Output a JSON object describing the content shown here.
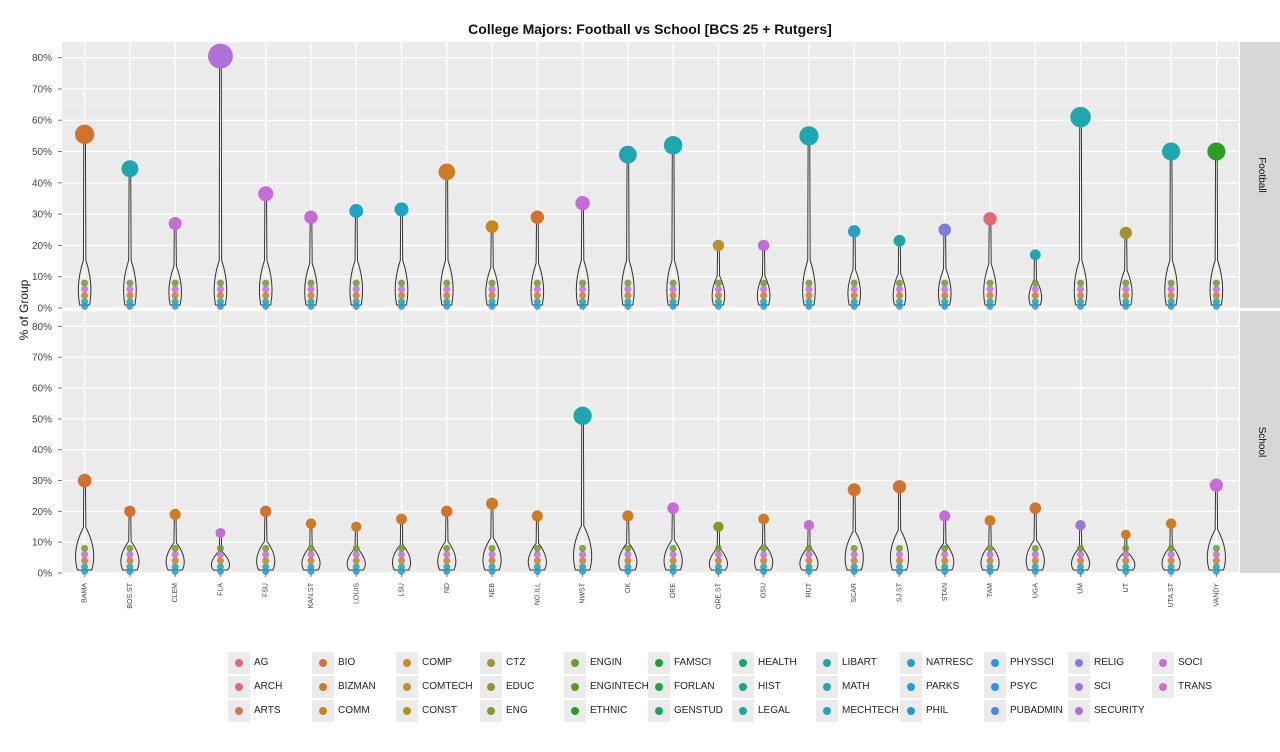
{
  "chart_data": {
    "type": "violin-scatter",
    "title": "College Majors: Football vs School [BCS 25 + Rutgers]",
    "ylabel": "% of Group",
    "xlabel": "",
    "ylim": [
      0,
      85
    ],
    "yticks": [
      0,
      10,
      20,
      30,
      40,
      50,
      60,
      70,
      80
    ],
    "ytick_labels": [
      "0%",
      "10%",
      "20%",
      "30%",
      "40%",
      "50%",
      "60%",
      "70%",
      "80%"
    ],
    "facets": [
      "Football",
      "School"
    ],
    "grid": true,
    "legend_position": "bottom",
    "categories": [
      "BAMA",
      "BOS.ST",
      "CLEM",
      "FLA",
      "FSU",
      "KAN.ST",
      "LOUIS",
      "LSU",
      "ND",
      "NEB",
      "NO.ILL",
      "NWST",
      "OK",
      "ORE",
      "ORE.ST",
      "OSU",
      "RUT",
      "SCAR",
      "SJ.ST",
      "STAN",
      "TAM",
      "UGA",
      "UM",
      "UT",
      "UTA.ST",
      "VANDY"
    ],
    "legend": [
      {
        "label": "AG",
        "color": "#E36876"
      },
      {
        "label": "ARCH",
        "color": "#DE6E6B"
      },
      {
        "label": "ARTS",
        "color": "#D8745E"
      },
      {
        "label": "BIO",
        "color": "#D2722F"
      },
      {
        "label": "BIZMAN",
        "color": "#CF7A24"
      },
      {
        "label": "COMM",
        "color": "#CC8420"
      },
      {
        "label": "COMP",
        "color": "#C98A24"
      },
      {
        "label": "COMTECH",
        "color": "#B8922A"
      },
      {
        "label": "CONST",
        "color": "#AE9423"
      },
      {
        "label": "CTZ",
        "color": "#A29530"
      },
      {
        "label": "EDUC",
        "color": "#94942C"
      },
      {
        "label": "ENG",
        "color": "#86962C"
      },
      {
        "label": "ENGIN",
        "color": "#709A2E"
      },
      {
        "label": "ENGINTECH",
        "color": "#569A2C"
      },
      {
        "label": "ETHNIC",
        "color": "#2E9C23"
      },
      {
        "label": "FAMSCI",
        "color": "#1E9E2E"
      },
      {
        "label": "FORLAN",
        "color": "#1EA04A"
      },
      {
        "label": "GENSTUD",
        "color": "#1BA05E"
      },
      {
        "label": "HEALTH",
        "color": "#1AA274"
      },
      {
        "label": "HIST",
        "color": "#1AA484"
      },
      {
        "label": "LEGAL",
        "color": "#1DA694"
      },
      {
        "label": "LIBART",
        "color": "#1EA6A2"
      },
      {
        "label": "MATH",
        "color": "#1FA6AE"
      },
      {
        "label": "MECHTECH",
        "color": "#20A4B8"
      },
      {
        "label": "NATRESC",
        "color": "#21A2C4"
      },
      {
        "label": "PARKS",
        "color": "#1F9ECE"
      },
      {
        "label": "PHIL",
        "color": "#2299D6"
      },
      {
        "label": "PHYSSCI",
        "color": "#2796DC"
      },
      {
        "label": "PSYC",
        "color": "#2F8FE0"
      },
      {
        "label": "PUBADMIN",
        "color": "#4A88E0"
      },
      {
        "label": "RELIG",
        "color": "#7D80DA"
      },
      {
        "label": "SCI",
        "color": "#9A78D8"
      },
      {
        "label": "SECURITY",
        "color": "#B170D8"
      },
      {
        "label": "SOCI",
        "color": "#C56CD6"
      },
      {
        "label": "TRANS",
        "color": "#D46BC8"
      }
    ],
    "series": [
      {
        "name": "Football",
        "maxima": [
          {
            "x": "BAMA",
            "major": "BIO",
            "value": 55.5
          },
          {
            "x": "BOS.ST",
            "major": "MATH",
            "value": 44.5
          },
          {
            "x": "CLEM",
            "major": "SOCI",
            "value": 27
          },
          {
            "x": "FLA",
            "major": "SECURITY",
            "value": 80.5
          },
          {
            "x": "FSU",
            "major": "SOCI",
            "value": 36.5
          },
          {
            "x": "KAN.ST",
            "major": "SOCI",
            "value": 29
          },
          {
            "x": "LOUIS",
            "major": "NATRESC",
            "value": 31
          },
          {
            "x": "LSU",
            "major": "NATRESC",
            "value": 31.5
          },
          {
            "x": "ND",
            "major": "BIZMAN",
            "value": 43.5
          },
          {
            "x": "NEB",
            "major": "COMM",
            "value": 26
          },
          {
            "x": "NO.ILL",
            "major": "BIO",
            "value": 29
          },
          {
            "x": "NWST",
            "major": "SOCI",
            "value": 33.5
          },
          {
            "x": "OK",
            "major": "MATH",
            "value": 49
          },
          {
            "x": "ORE",
            "major": "MATH",
            "value": 52
          },
          {
            "x": "ORE.ST",
            "major": "COMTECH",
            "value": 20
          },
          {
            "x": "OSU",
            "major": "SOCI",
            "value": 20
          },
          {
            "x": "RUT",
            "major": "MATH",
            "value": 55
          },
          {
            "x": "SCAR",
            "major": "NATRESC",
            "value": 24.5
          },
          {
            "x": "SJ.ST",
            "major": "LIBART",
            "value": 21.5
          },
          {
            "x": "STAN",
            "major": "RELIG",
            "value": 25
          },
          {
            "x": "TAM",
            "major": "AG",
            "value": 28.5
          },
          {
            "x": "UGA",
            "major": "MATH",
            "value": 17
          },
          {
            "x": "UM",
            "major": "MATH",
            "value": 61
          },
          {
            "x": "UT",
            "major": "CTZ",
            "value": 24
          },
          {
            "x": "UTA.ST",
            "major": "MATH",
            "value": 50
          },
          {
            "x": "VANDY",
            "major": "ETHNIC",
            "value": 50
          }
        ]
      },
      {
        "name": "School",
        "maxima": [
          {
            "x": "BAMA",
            "major": "BIO",
            "value": 30
          },
          {
            "x": "BOS.ST",
            "major": "BIO",
            "value": 20
          },
          {
            "x": "CLEM",
            "major": "BIZMAN",
            "value": 19
          },
          {
            "x": "FLA",
            "major": "SOCI",
            "value": 13
          },
          {
            "x": "FSU",
            "major": "BIO",
            "value": 20
          },
          {
            "x": "KAN.ST",
            "major": "BIZMAN",
            "value": 16
          },
          {
            "x": "LOUIS",
            "major": "BIZMAN",
            "value": 15
          },
          {
            "x": "LSU",
            "major": "BIZMAN",
            "value": 17.5
          },
          {
            "x": "ND",
            "major": "BIO",
            "value": 20
          },
          {
            "x": "NEB",
            "major": "BIZMAN",
            "value": 22.5
          },
          {
            "x": "NO.ILL",
            "major": "BIZMAN",
            "value": 18.5
          },
          {
            "x": "NWST",
            "major": "MATH",
            "value": 51
          },
          {
            "x": "OK",
            "major": "BIZMAN",
            "value": 18.5
          },
          {
            "x": "ORE",
            "major": "SOCI",
            "value": 21
          },
          {
            "x": "ORE.ST",
            "major": "ENG",
            "value": 15
          },
          {
            "x": "OSU",
            "major": "BIZMAN",
            "value": 17.5
          },
          {
            "x": "RUT",
            "major": "SOCI",
            "value": 15.5
          },
          {
            "x": "SCAR",
            "major": "BIO",
            "value": 27
          },
          {
            "x": "SJ.ST",
            "major": "BIO",
            "value": 28
          },
          {
            "x": "STAN",
            "major": "SOCI",
            "value": 18.5
          },
          {
            "x": "TAM",
            "major": "BIZMAN",
            "value": 17
          },
          {
            "x": "UGA",
            "major": "BIO",
            "value": 21
          },
          {
            "x": "UM",
            "major": "SCI",
            "value": 15.5
          },
          {
            "x": "UT",
            "major": "BIZMAN",
            "value": 12.5
          },
          {
            "x": "UTA.ST",
            "major": "BIZMAN",
            "value": 16
          },
          {
            "x": "VANDY",
            "major": "SOCI",
            "value": 28.5
          }
        ]
      }
    ]
  }
}
